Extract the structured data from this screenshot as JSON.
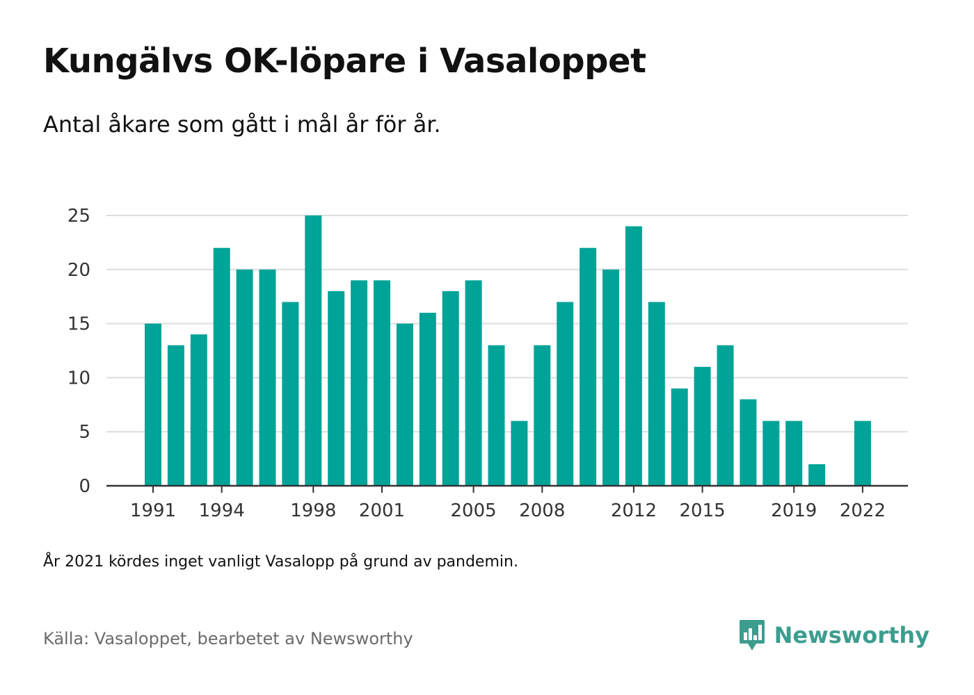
{
  "header": {
    "title": "Kungälvs OK-löpare i Vasaloppet",
    "subtitle": "Antal åkare som gått i mål år för år."
  },
  "note": "År 2021 kördes inget vanligt Vasalopp på grund av pandemin.",
  "footer": {
    "source": "Källa: Vasaloppet, bearbetet av Newsworthy",
    "brand": "Newsworthy",
    "brand_icon": "bar-chart-bubble-icon"
  },
  "colors": {
    "bar": "#00a398",
    "gridline": "#dddddd",
    "axis": "#333333",
    "brand": "#3c9d8f"
  },
  "chart_data": {
    "type": "bar",
    "title": "Kungälvs OK-löpare i Vasaloppet",
    "subtitle": "Antal åkare som gått i mål år för år.",
    "xlabel": "",
    "ylabel": "",
    "categories": [
      1991,
      1992,
      1993,
      1994,
      1995,
      1996,
      1997,
      1998,
      1999,
      2000,
      2001,
      2002,
      2003,
      2004,
      2005,
      2006,
      2007,
      2008,
      2009,
      2010,
      2011,
      2012,
      2013,
      2014,
      2015,
      2016,
      2017,
      2018,
      2019,
      2020,
      2021,
      2022
    ],
    "values": [
      15,
      13,
      14,
      22,
      20,
      20,
      17,
      25,
      18,
      19,
      19,
      15,
      16,
      18,
      19,
      13,
      6,
      13,
      17,
      22,
      20,
      24,
      17,
      9,
      11,
      13,
      8,
      6,
      6,
      2,
      null,
      6
    ],
    "x_tick_labels": [
      "1991",
      "1994",
      "1998",
      "2001",
      "2005",
      "2008",
      "2012",
      "2015",
      "2019",
      "2022"
    ],
    "y_ticks": [
      0,
      5,
      10,
      15,
      20,
      25
    ],
    "ylim": [
      0,
      25
    ],
    "grid": true,
    "legend": "none"
  }
}
